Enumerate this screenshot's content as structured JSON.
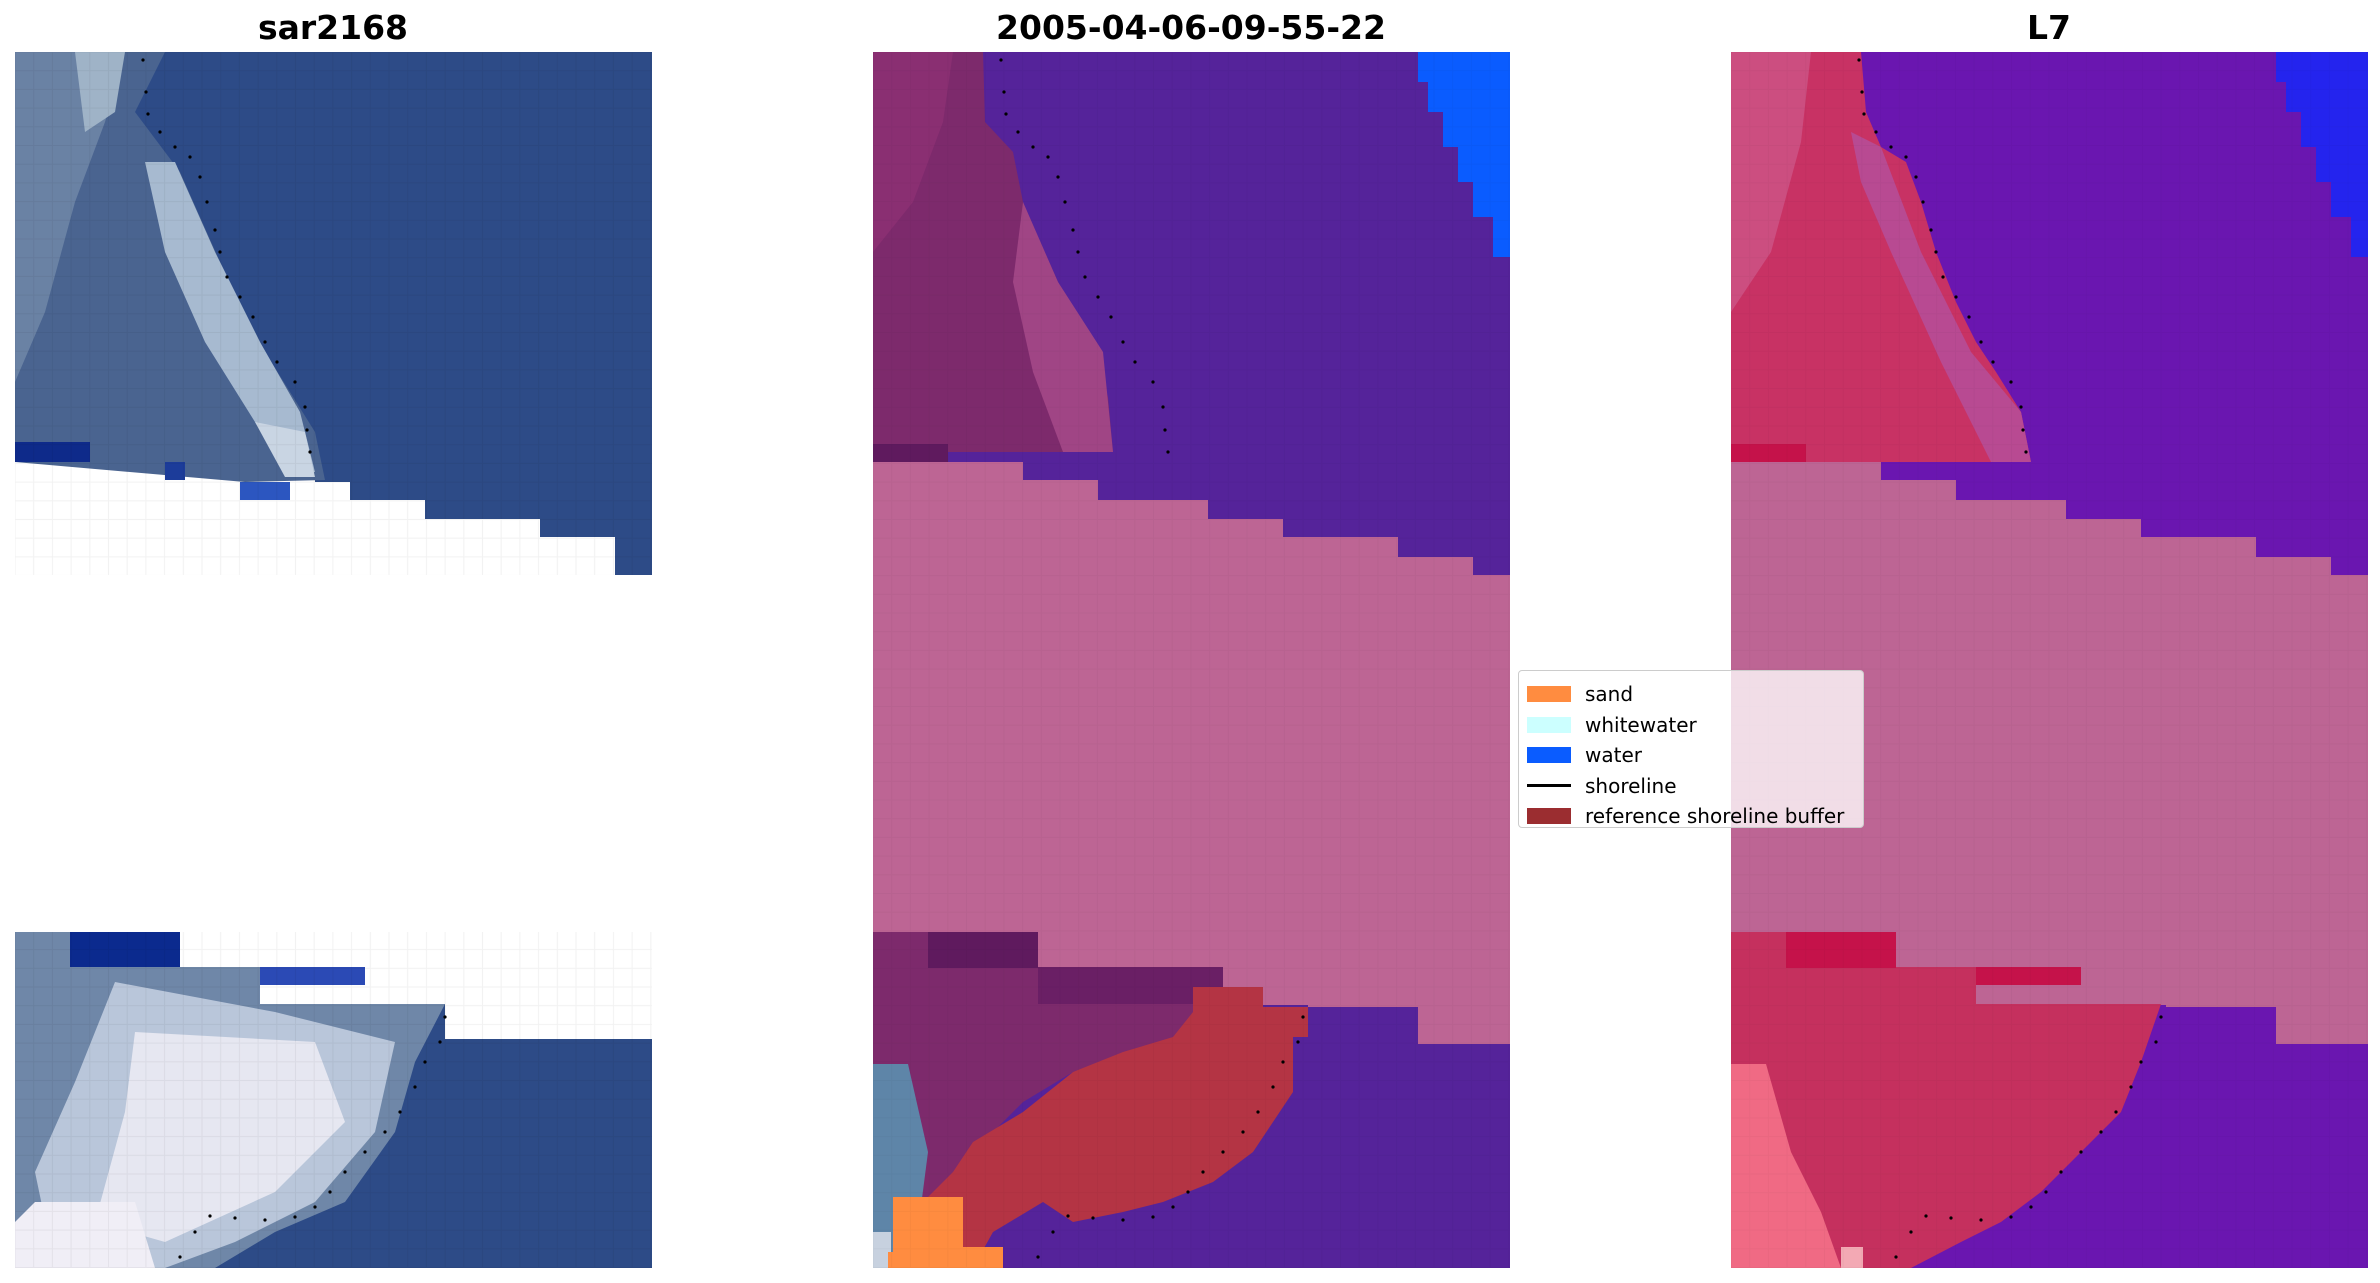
{
  "panels": [
    {
      "title": "sar2168",
      "kind": "rgb"
    },
    {
      "title": "2005-04-06-09-55-22",
      "kind": "classification"
    },
    {
      "title": "L7",
      "kind": "index"
    }
  ],
  "legend": {
    "items": [
      {
        "label": "sand",
        "type": "patch",
        "color": "#ff8c40"
      },
      {
        "label": "whitewater",
        "type": "patch",
        "color": "#ccffff"
      },
      {
        "label": "water",
        "type": "patch",
        "color": "#0a5cff"
      },
      {
        "label": "shoreline",
        "type": "line",
        "color": "#000000"
      },
      {
        "label": "reference shoreline buffer",
        "type": "patch",
        "color": "#9b2d30"
      }
    ]
  },
  "colors": {
    "sea_rgb": "#2b4a86",
    "land_rgb": "#8a9fb5",
    "classified_water": "#55239a",
    "buffer_overlay": "#bd6594",
    "sand": "#ff8c40",
    "bright_water": "#0a5cff",
    "index_land": "#c83264",
    "index_water": "#6a16b0"
  }
}
